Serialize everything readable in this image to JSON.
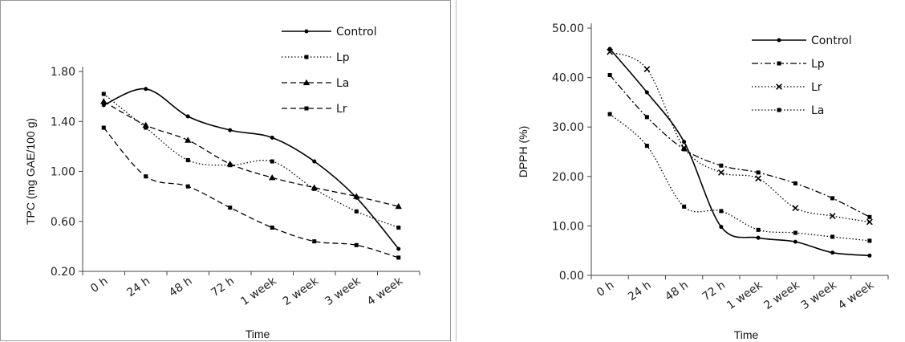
{
  "chart_data": [
    {
      "type": "line",
      "title": "",
      "xlabel": "Time",
      "ylabel": "TPC (mg GAE/100 g)",
      "categories": [
        "0 h",
        "24 h",
        "48 h",
        "72 h",
        "1 week",
        "2 week",
        "3 week",
        "4 week"
      ],
      "yticks": [
        "0.20",
        "0.60",
        "1.00",
        "1.40",
        "1.80"
      ],
      "ylim": [
        0.2,
        1.8
      ],
      "grid": false,
      "legend_position": "top-right",
      "series": [
        {
          "name": "Control",
          "values": [
            1.53,
            1.66,
            1.44,
            1.33,
            1.27,
            1.08,
            0.79,
            0.38
          ],
          "line": "solid",
          "marker": "circle"
        },
        {
          "name": "Lp",
          "values": [
            1.62,
            1.35,
            1.09,
            1.05,
            1.08,
            0.86,
            0.68,
            0.55
          ],
          "line": "dotted",
          "marker": "square"
        },
        {
          "name": "La",
          "values": [
            1.56,
            1.37,
            1.25,
            1.06,
            0.95,
            0.87,
            0.8,
            0.72
          ],
          "line": "dashed",
          "marker": "triangle"
        },
        {
          "name": "Lr",
          "values": [
            1.35,
            0.96,
            0.88,
            0.71,
            0.55,
            0.44,
            0.41,
            0.31
          ],
          "line": "dashed",
          "marker": "square"
        }
      ]
    },
    {
      "type": "line",
      "title": "",
      "xlabel": "Time",
      "ylabel": "DPPH (%)",
      "categories": [
        "0 h",
        "24 h",
        "48 h",
        "72 h",
        "1 week",
        "2 week",
        "3 week",
        "4 week"
      ],
      "yticks": [
        "0.00",
        "10.00",
        "20.00",
        "30.00",
        "40.00",
        "50.00"
      ],
      "ylim": [
        0,
        50
      ],
      "grid": false,
      "legend_position": "top-right",
      "series": [
        {
          "name": "Control",
          "values": [
            45.8,
            37.0,
            27.0,
            9.8,
            7.6,
            6.8,
            4.6,
            4.0
          ],
          "line": "solid",
          "marker": "circle"
        },
        {
          "name": "Lp",
          "values": [
            40.5,
            32.0,
            25.5,
            22.2,
            20.8,
            18.6,
            15.6,
            11.8
          ],
          "line": "dashdot",
          "marker": "square"
        },
        {
          "name": "Lr",
          "values": [
            45.2,
            41.7,
            25.8,
            20.8,
            19.6,
            13.6,
            12.0,
            10.8
          ],
          "line": "dotted",
          "marker": "cross"
        },
        {
          "name": "La",
          "values": [
            32.6,
            26.2,
            13.9,
            13.0,
            9.2,
            8.6,
            7.8,
            7.0
          ],
          "line": "dotted",
          "marker": "square"
        }
      ]
    }
  ]
}
